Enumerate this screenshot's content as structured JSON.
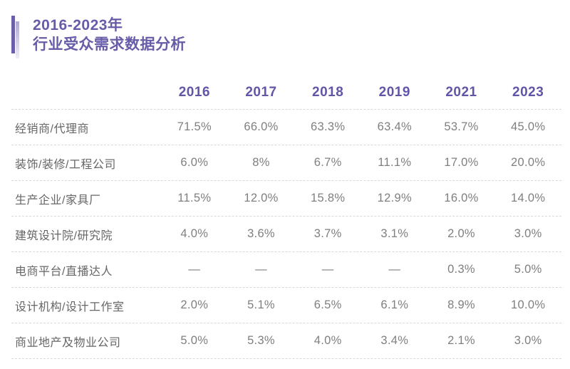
{
  "header": {
    "title_line1": "2016-2023年",
    "title_line2": "行业受众需求数据分析"
  },
  "colors": {
    "accent_purple": "#6C5FA9",
    "header_text_purple": "#6156A6",
    "row_label_gray": "#666666",
    "value_gray": "#7f7f7f",
    "divider_gray": "#D9D9D9"
  },
  "chart_data": {
    "type": "table",
    "title": "2016-2023年 行业受众需求数据分析",
    "columns": [
      "2016",
      "2017",
      "2018",
      "2019",
      "2021",
      "2023"
    ],
    "rows": [
      {
        "label": "经销商/代理商",
        "values": [
          "71.5%",
          "66.0%",
          "63.3%",
          "63.4%",
          "53.7%",
          "45.0%"
        ]
      },
      {
        "label": "装饰/装修/工程公司",
        "values": [
          "6.0%",
          "8%",
          "6.7%",
          "11.1%",
          "17.0%",
          "20.0%"
        ]
      },
      {
        "label": "生产企业/家具厂",
        "values": [
          "11.5%",
          "12.0%",
          "15.8%",
          "12.9%",
          "16.0%",
          "14.0%"
        ]
      },
      {
        "label": "建筑设计院/研究院",
        "values": [
          "4.0%",
          "3.6%",
          "3.7%",
          "3.1%",
          "2.0%",
          "3.0%"
        ]
      },
      {
        "label": "电商平台/直播达人",
        "values": [
          "—",
          "—",
          "—",
          "—",
          "0.3%",
          "5.0%"
        ]
      },
      {
        "label": "设计机构/设计工作室",
        "values": [
          "2.0%",
          "5.1%",
          "6.5%",
          "6.1%",
          "8.9%",
          "10.0%"
        ]
      },
      {
        "label": "商业地产及物业公司",
        "values": [
          "5.0%",
          "5.3%",
          "4.0%",
          "3.4%",
          "2.1%",
          "3.0%"
        ]
      }
    ]
  }
}
